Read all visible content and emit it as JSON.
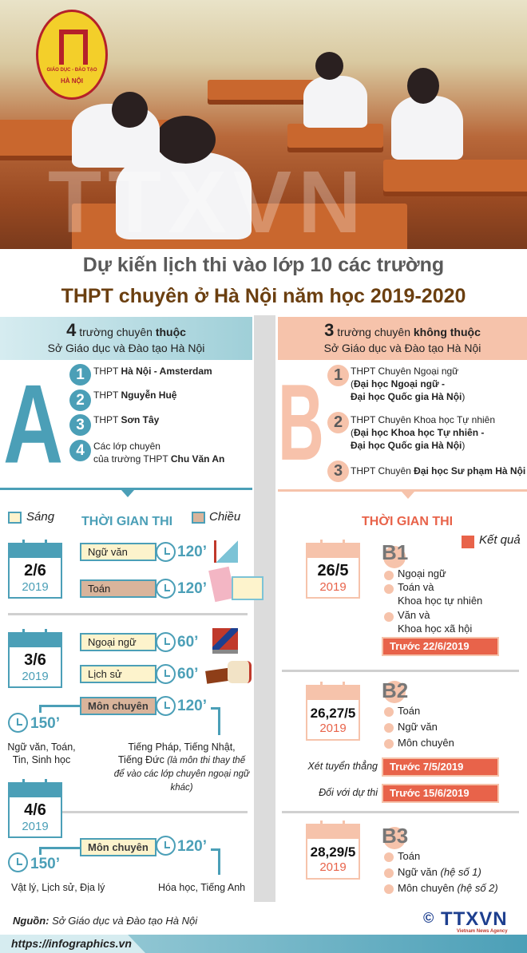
{
  "header": {
    "logo_text_1": "GIÁO DỤC - ĐÀO TẠO",
    "logo_text_2": "HÀ NỘI",
    "watermark": "TTXVN",
    "title_line1": "Dự kiến lịch thi vào lớp 10 các trường",
    "title_line2": "THPT chuyên ở Hà Nội năm học 2019-2020"
  },
  "groupA": {
    "count": "4",
    "heading_pre": " trường chuyên ",
    "heading_bold": "thuộc",
    "subheading": "Sở Giáo dục và Đào tạo Hà Nội",
    "letter": "A",
    "schools": [
      {
        "num": "1",
        "pre": "THPT ",
        "bold": "Hà Nội - Amsterdam"
      },
      {
        "num": "2",
        "pre": "THPT ",
        "bold": "Nguyễn Huệ"
      },
      {
        "num": "3",
        "pre": "THPT ",
        "bold": "Sơn Tây"
      },
      {
        "num": "4",
        "pre": "Các lớp chuyên",
        "pre2": "của trường THPT ",
        "bold": "Chu Văn An"
      }
    ],
    "section_title": "THỜI GIAN THI",
    "legend_morning": "Sáng",
    "legend_afternoon": "Chiều",
    "days": [
      {
        "date": "2/6",
        "year": "2019",
        "exams": [
          {
            "subject": "Ngữ văn",
            "duration": "120’",
            "session": "morning"
          },
          {
            "subject": "Toán",
            "duration": "120’",
            "session": "afternoon"
          }
        ]
      },
      {
        "date": "3/6",
        "year": "2019",
        "exams": [
          {
            "subject": "Ngoại ngữ",
            "duration": "60’",
            "session": "morning"
          },
          {
            "subject": "Lịch sử",
            "duration": "60’",
            "session": "morning"
          },
          {
            "subject": "Môn chuyên",
            "duration": "120’",
            "session": "afternoon"
          }
        ],
        "alt_duration": "150’",
        "left_subjects": "Ngữ văn, Toán,\nTin, Sinh học",
        "right_subjects": "Tiếng Pháp, Tiếng Nhật,\nTiếng Đức ",
        "right_note": "(là môn thi thay thế để vào các lớp chuyên ngoại ngữ khác)"
      },
      {
        "date": "4/6",
        "year": "2019",
        "exams": [
          {
            "subject": "Môn chuyên",
            "duration": "120’",
            "session": "morning"
          }
        ],
        "alt_duration": "150’",
        "left_subjects": "Vật lý, Lịch sử, Địa lý",
        "right_subjects": "Hóa học, Tiếng Anh"
      }
    ]
  },
  "groupB": {
    "count": "3",
    "heading_pre": " trường chuyên ",
    "heading_bold": "không thuộc",
    "subheading": "Sở Giáo dục và Đào tạo Hà Nội",
    "letter": "B",
    "schools": [
      {
        "num": "1",
        "pre": "THPT Chuyên Ngoại ngữ",
        "bold1": "Đại học Ngoại ngữ -",
        "bold2": "Đại học Quốc gia Hà Nội"
      },
      {
        "num": "2",
        "pre": "THPT Chuyên Khoa học Tự nhiên",
        "bold1": "Đại học Khoa học Tự nhiên -",
        "bold2": "Đại học Quốc gia Hà Nội"
      },
      {
        "num": "3",
        "pre": "THPT Chuyên ",
        "bold": "Đại học Sư phạm Hà Nội"
      }
    ],
    "section_title": "THỜI GIAN THI",
    "legend_result": "Kết quả",
    "rounds": [
      {
        "label": "B1",
        "date": "26/5",
        "year": "2019",
        "subjects": [
          "Ngoại ngữ",
          "Toán và\nKhoa học tự nhiên",
          "Văn và\nKhoa học xã hội"
        ],
        "results": [
          {
            "label": "",
            "value": "Trước 22/6/2019"
          }
        ]
      },
      {
        "label": "B2",
        "date": "26,27/5",
        "year": "2019",
        "subjects": [
          "Toán",
          "Ngữ văn",
          "Môn chuyên"
        ],
        "results": [
          {
            "label": "Xét tuyển thẳng",
            "value": "Trước 7/5/2019"
          },
          {
            "label": "Đối với dự thi",
            "value": "Trước 15/6/2019"
          }
        ]
      },
      {
        "label": "B3",
        "date": "28,29/5",
        "year": "2019",
        "subjects": [
          {
            "t": "Toán"
          },
          {
            "t": "Ngữ văn ",
            "i": "(hệ số 1)"
          },
          {
            "t": "Môn chuyên ",
            "i": "(hệ số 2)"
          }
        ]
      }
    ]
  },
  "footer": {
    "source_label": "Nguồn:",
    "source": " Sở Giáo dục và Đào tạo Hà Nội",
    "url": "https://infographics.vn",
    "copyright": "©",
    "agency": "TTXVN",
    "agency_sub": "Vietnam News Agency"
  },
  "colors": {
    "teal": "#4b9fb7",
    "pink": "#f6c3ab",
    "result": "#e8634a",
    "morning": "#fdf3cc",
    "afternoon": "#d9b49b",
    "title_brown": "#6b3f10"
  }
}
